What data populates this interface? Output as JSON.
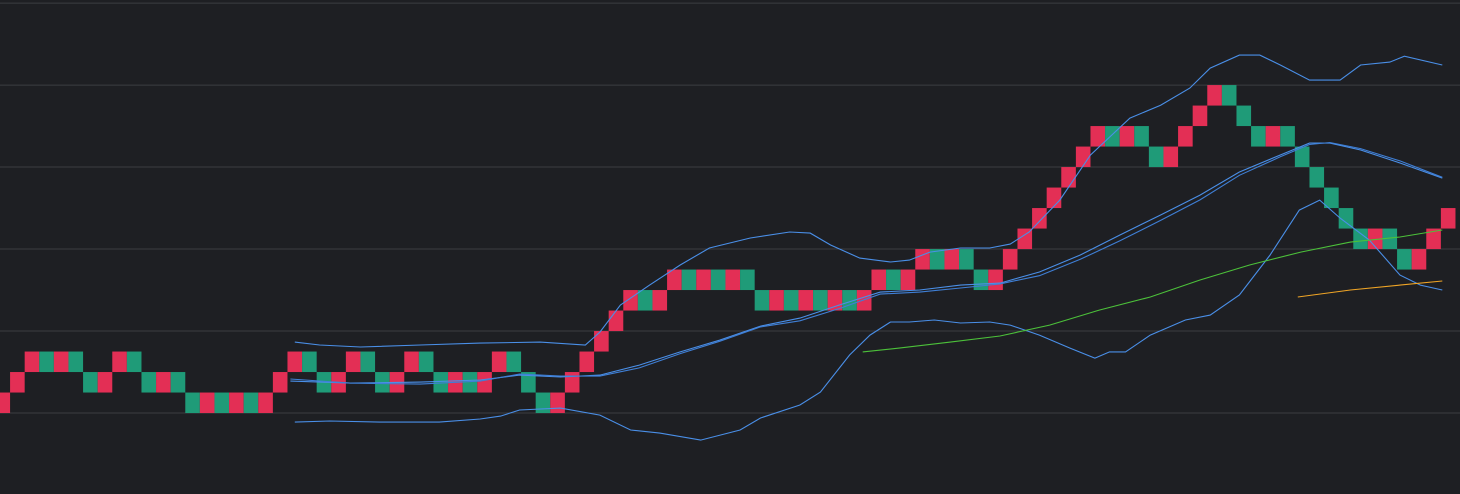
{
  "chart_data": {
    "type": "renko",
    "xlim": [
      0.31,
      100.31
    ],
    "ylim": [
      -3.95,
      20.15
    ],
    "gridlines": [
      0,
      4,
      8,
      12,
      16,
      20
    ],
    "grid": true,
    "up_color": "#e32f55",
    "down_color": "#1f9b78",
    "open": [
      0,
      1,
      2,
      3,
      2,
      3,
      2,
      1,
      2,
      3,
      2,
      1,
      2,
      1,
      0,
      1,
      0,
      1,
      0,
      1,
      2,
      3,
      2,
      1,
      2,
      3,
      2,
      1,
      2,
      3,
      2,
      1,
      2,
      1,
      2,
      3,
      2,
      1,
      0,
      1,
      2,
      3,
      4,
      5,
      6,
      5,
      6,
      7,
      6,
      7,
      6,
      7,
      6,
      5,
      6,
      5,
      6,
      5,
      6,
      5,
      6,
      7,
      6,
      7,
      8,
      7,
      8,
      7,
      6,
      7,
      8,
      9,
      10,
      11,
      12,
      13,
      14,
      13,
      14,
      13,
      12,
      13,
      14,
      15,
      16,
      15,
      14,
      13,
      14,
      13,
      12,
      11,
      10,
      9,
      8,
      9,
      8,
      7,
      8,
      9
    ],
    "close": [
      1,
      2,
      3,
      2,
      3,
      2,
      1,
      2,
      3,
      2,
      1,
      2,
      1,
      0,
      1,
      0,
      1,
      0,
      1,
      2,
      3,
      2,
      1,
      2,
      3,
      2,
      1,
      2,
      3,
      2,
      1,
      2,
      1,
      2,
      3,
      2,
      1,
      0,
      1,
      2,
      3,
      4,
      5,
      6,
      5,
      6,
      7,
      6,
      7,
      6,
      7,
      6,
      5,
      6,
      5,
      6,
      5,
      6,
      5,
      6,
      7,
      6,
      7,
      8,
      7,
      8,
      7,
      6,
      7,
      8,
      9,
      10,
      11,
      12,
      13,
      14,
      13,
      14,
      13,
      12,
      13,
      14,
      15,
      16,
      15,
      14,
      13,
      14,
      13,
      12,
      11,
      10,
      9,
      8,
      9,
      8,
      7,
      8,
      9,
      10
    ],
    "lines": [
      {
        "color": "#4a8fe8",
        "x": [
          20.5,
          22.2,
          25.0,
          29.1,
          33.2,
          37.3,
          40.4,
          41.4,
          42.8,
          44.8,
          46.9,
          48.9,
          51.7,
          54.4,
          55.8,
          57.2,
          59.2,
          61.3,
          62.6,
          64.0,
          66.1,
          68.1,
          69.5,
          70.8,
          72.9,
          75.0,
          77.7,
          79.8,
          81.8,
          83.2,
          85.2,
          86.6,
          88.0,
          90.0,
          92.1,
          93.5,
          95.5,
          96.5,
          99.1
        ],
        "values": [
          3.46,
          3.32,
          3.22,
          3.32,
          3.41,
          3.46,
          3.32,
          3.95,
          5.27,
          6.24,
          7.22,
          8.05,
          8.54,
          8.83,
          8.78,
          8.2,
          7.56,
          7.37,
          7.46,
          7.85,
          8.05,
          8.05,
          8.24,
          8.83,
          10.39,
          12.59,
          14.39,
          15.02,
          15.85,
          16.83,
          17.46,
          17.46,
          16.98,
          16.24,
          16.24,
          16.98,
          17.12,
          17.41,
          16.98
        ]
      },
      {
        "color": "#4a8fe8",
        "x": [
          20.5,
          22.9,
          26.3,
          30.4,
          33.2,
          34.6,
          35.9,
          38.7,
          41.4,
          43.5,
          45.5,
          48.3,
          51.0,
          52.4,
          55.1,
          56.5,
          58.5,
          59.9,
          61.3,
          62.6,
          64.3,
          66.1,
          68.1,
          69.5,
          71.5,
          73.6,
          75.3,
          76.3,
          77.4,
          79.1,
          81.5,
          83.2,
          85.2,
          87.3,
          89.3,
          90.7,
          92.1,
          94.1,
          96.2,
          97.6,
          99.1
        ],
        "values": [
          -0.44,
          -0.39,
          -0.44,
          -0.44,
          -0.29,
          -0.15,
          0.15,
          0.24,
          -0.1,
          -0.83,
          -0.98,
          -1.32,
          -0.83,
          -0.24,
          0.39,
          1.02,
          2.83,
          3.8,
          4.44,
          4.44,
          4.54,
          4.39,
          4.44,
          4.29,
          3.8,
          3.17,
          2.68,
          2.98,
          2.98,
          3.8,
          4.54,
          4.78,
          5.76,
          7.71,
          9.9,
          10.39,
          9.51,
          8.44,
          6.73,
          6.24,
          6.0
        ]
      },
      {
        "color": "#4a8fe8",
        "x": [
          20.2,
          24.3,
          29.1,
          33.2,
          35.9,
          38.7,
          41.4,
          44.1,
          46.9,
          49.6,
          52.4,
          55.1,
          57.8,
          60.6,
          63.3,
          66.1,
          68.8,
          71.5,
          74.3,
          77.0,
          79.8,
          82.5,
          85.2,
          88.0,
          90.0,
          91.4,
          93.5,
          96.2,
          99.1
        ],
        "values": [
          1.56,
          1.46,
          1.51,
          1.61,
          1.85,
          1.76,
          1.85,
          2.34,
          2.98,
          3.56,
          4.24,
          4.63,
          5.27,
          5.9,
          6.0,
          6.24,
          6.34,
          6.88,
          7.71,
          8.68,
          9.66,
          10.63,
          11.76,
          12.59,
          13.17,
          13.17,
          12.83,
          12.2,
          11.46
        ]
      },
      {
        "color": "#3f7fd6",
        "x": [
          20.2,
          24.3,
          29.1,
          33.2,
          35.9,
          38.7,
          41.4,
          44.1,
          46.9,
          49.6,
          52.4,
          55.1,
          57.8,
          60.6,
          63.3,
          66.1,
          68.8,
          71.5,
          74.3,
          77.0,
          79.8,
          82.5,
          85.2,
          88.0,
          90.0,
          91.4,
          93.5,
          96.2,
          99.1
        ],
        "values": [
          1.66,
          1.46,
          1.41,
          1.56,
          1.9,
          1.8,
          1.8,
          2.2,
          2.9,
          3.5,
          4.2,
          4.5,
          5.1,
          5.8,
          5.9,
          6.1,
          6.3,
          6.7,
          7.5,
          8.4,
          9.4,
          10.4,
          11.6,
          12.5,
          13.1,
          13.2,
          12.9,
          12.3,
          11.5
        ]
      },
      {
        "color": "#4cc13a",
        "x": [
          59.4,
          61.9,
          65.4,
          68.8,
          72.2,
          75.6,
          79.1,
          82.5,
          85.9,
          89.4,
          92.8,
          96.2,
          99.1
        ],
        "values": [
          2.98,
          3.17,
          3.46,
          3.76,
          4.29,
          5.02,
          5.66,
          6.49,
          7.22,
          7.85,
          8.34,
          8.59,
          8.93
        ]
      },
      {
        "color": "#f0a526",
        "x": [
          89.2,
          92.8,
          96.2,
          99.1
        ],
        "values": [
          5.66,
          6.0,
          6.24,
          6.44
        ]
      }
    ]
  }
}
